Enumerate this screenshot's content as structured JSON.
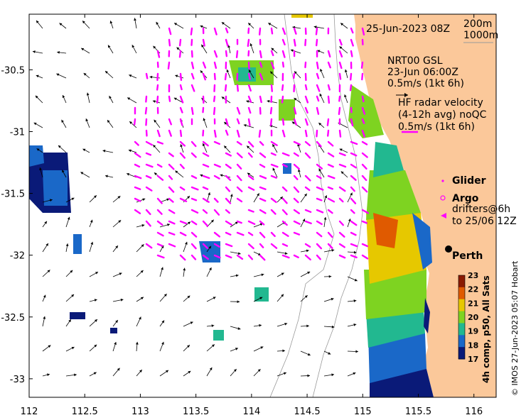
{
  "header": {
    "datetime": "25-Jun-2023 08Z"
  },
  "isobath_legend": {
    "label_200": "200m",
    "label_1000": "1000m"
  },
  "wind_legend": {
    "source": "NRT00 GSL",
    "time": "23-Jun 06:00Z",
    "scale": "0.5m/s (1kt 6h)"
  },
  "radar_legend": {
    "line1": "HF radar velocity",
    "line2": "(4-12h avg) noQC",
    "scale": "0.5m/s (1kt 6h)"
  },
  "platform_legend": {
    "glider": "Glider",
    "argo": "Argo",
    "drifters_line1": "drifters@6h",
    "drifters_line2": "to 25/06 12Z"
  },
  "place_labels": {
    "perth": "Perth"
  },
  "colorbar": {
    "title": "4h comp, p50, All Sats",
    "ticks": [
      "23",
      "22",
      "21",
      "20",
      "19",
      "18",
      "17"
    ],
    "colors": [
      "#8b1a00",
      "#e05a00",
      "#e6c800",
      "#7ed321",
      "#22b890",
      "#1a68c8",
      "#0a1a78"
    ]
  },
  "credit": "© IMOS 27-Jun-2023 05:07 Hobart",
  "axes": {
    "x_ticks": [
      "112",
      "112.5",
      "113",
      "113.5",
      "114",
      "114.5",
      "115",
      "115.5",
      "116"
    ],
    "y_ticks": [
      "-30.5",
      "-31",
      "-31.5",
      "-32",
      "-32.5",
      "-33"
    ],
    "x_range": [
      112,
      116.2
    ],
    "y_range": [
      -33.15,
      -30.05
    ]
  },
  "colors": {
    "land": "#fbc89a",
    "radar_vectors": "#ff00ff",
    "wind_vectors": "#000000",
    "isobath": "#9a9a9a"
  }
}
